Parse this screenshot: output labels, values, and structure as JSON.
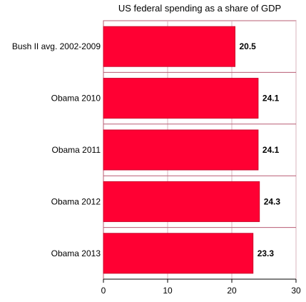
{
  "chart_data": {
    "type": "bar",
    "orientation": "horizontal",
    "title": "US federal spending as a share of GDP",
    "xlabel": "",
    "ylabel": "",
    "categories": [
      "Bush II avg. 2002-2009",
      "Obama 2010",
      "Obama 2011",
      "Obama 2012",
      "Obama 2013"
    ],
    "values": [
      20.5,
      24.1,
      24.1,
      24.3,
      23.3
    ],
    "value_labels": [
      "20.5",
      "24.1",
      "24.1",
      "24.3",
      "23.3"
    ],
    "xlim": [
      0,
      30
    ],
    "x_ticks": [
      0,
      10,
      20,
      30
    ],
    "x_tick_labels": [
      "0",
      "10",
      "20",
      "30"
    ],
    "grid": true,
    "legend": "none",
    "colors": {
      "bar_fill": "#ff0033",
      "bar_stroke": "#cc0029",
      "frame": "#b85c73",
      "grid": "#d9b3bd"
    }
  }
}
